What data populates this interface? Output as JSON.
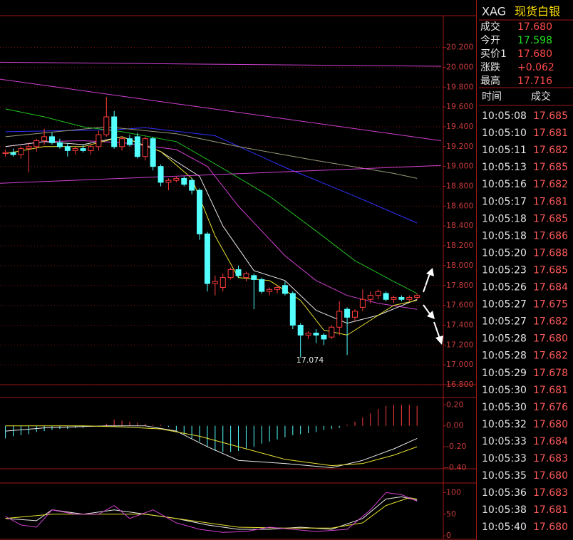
{
  "chart_data": [
    {
      "type": "candlestick",
      "x": [
        0,
        1,
        2,
        3,
        4,
        5,
        6,
        7,
        8,
        9,
        10,
        11,
        12,
        13,
        14,
        15,
        16,
        17,
        18,
        19,
        20,
        21,
        22,
        23,
        24,
        25,
        26,
        27,
        28,
        29,
        30,
        31,
        32,
        33,
        34,
        35,
        36,
        37,
        38,
        39,
        40,
        41,
        42,
        43,
        44,
        45,
        46,
        47,
        48,
        49,
        50,
        51,
        52,
        53
      ],
      "open": [
        19.13,
        19.14,
        19.12,
        19.18,
        19.2,
        19.26,
        19.3,
        19.24,
        19.2,
        19.16,
        19.18,
        19.16,
        19.2,
        19.32,
        19.5,
        19.2,
        19.28,
        19.3,
        19.1,
        19.28,
        19.0,
        18.84,
        18.86,
        18.88,
        18.86,
        18.76,
        18.32,
        17.82,
        17.78,
        17.88,
        17.96,
        17.88,
        17.9,
        17.86,
        17.74,
        17.76,
        17.8,
        17.72,
        17.4,
        17.3,
        17.32,
        17.3,
        17.28,
        17.38,
        17.56,
        17.48,
        17.58,
        17.66,
        17.7,
        17.72,
        17.66,
        17.68,
        17.66,
        17.68
      ],
      "high": [
        19.17,
        19.18,
        19.2,
        19.24,
        19.28,
        19.38,
        19.34,
        19.28,
        19.24,
        19.2,
        19.22,
        19.22,
        19.36,
        19.7,
        19.56,
        19.3,
        19.32,
        19.34,
        19.3,
        19.3,
        19.02,
        18.88,
        18.9,
        18.9,
        18.88,
        18.78,
        18.34,
        17.9,
        17.92,
        17.98,
        18.0,
        17.94,
        17.92,
        17.88,
        17.78,
        17.8,
        17.84,
        17.74,
        17.42,
        17.34,
        17.36,
        17.32,
        17.4,
        17.64,
        17.58,
        17.56,
        17.76,
        17.74,
        17.76,
        17.74,
        17.7,
        17.7,
        17.7,
        17.72
      ],
      "low": [
        19.1,
        19.1,
        19.08,
        18.94,
        19.15,
        19.22,
        19.22,
        19.18,
        19.1,
        19.12,
        19.14,
        19.12,
        19.16,
        19.3,
        19.18,
        19.16,
        19.2,
        19.08,
        19.06,
        18.96,
        18.8,
        18.76,
        18.84,
        18.8,
        18.72,
        18.26,
        17.74,
        17.7,
        17.74,
        17.86,
        17.88,
        17.84,
        17.56,
        17.72,
        17.7,
        17.72,
        17.7,
        17.36,
        17.074,
        17.26,
        17.22,
        17.2,
        17.26,
        17.3,
        17.1,
        17.44,
        17.54,
        17.62,
        17.66,
        17.64,
        17.62,
        17.64,
        17.64,
        17.66
      ],
      "close": [
        19.14,
        19.12,
        19.18,
        19.2,
        19.26,
        19.3,
        19.24,
        19.2,
        19.16,
        19.18,
        19.16,
        19.2,
        19.32,
        19.5,
        19.2,
        19.28,
        19.22,
        19.1,
        19.28,
        19.0,
        18.84,
        18.86,
        18.88,
        18.82,
        18.76,
        18.32,
        17.82,
        17.84,
        17.88,
        17.96,
        17.9,
        17.92,
        17.86,
        17.74,
        17.76,
        17.78,
        17.72,
        17.4,
        17.3,
        17.32,
        17.3,
        17.26,
        17.38,
        17.54,
        17.48,
        17.54,
        17.66,
        17.7,
        17.74,
        17.66,
        17.68,
        17.66,
        17.68,
        17.7
      ],
      "up_color": "#ff3c3c",
      "down_color": "#54ffff",
      "xlim": [
        -0.7,
        59.5
      ],
      "ylim": [
        16.8,
        20.52
      ],
      "yticks": [
        {
          "value": 16.8,
          "label": "16.800"
        },
        {
          "value": 17.0,
          "label": "17.000"
        },
        {
          "value": 17.2,
          "label": "17.200"
        },
        {
          "value": 17.4,
          "label": "17.400"
        },
        {
          "value": 17.6,
          "label": "17.600"
        },
        {
          "value": 17.8,
          "label": "17.800"
        },
        {
          "value": 18.0,
          "label": "18.000"
        },
        {
          "value": 18.2,
          "label": "18.200"
        },
        {
          "value": 18.4,
          "label": "18.400"
        },
        {
          "value": 18.6,
          "label": "18.600"
        },
        {
          "value": 18.8,
          "label": "18.800"
        },
        {
          "value": 19.0,
          "label": "19.000"
        },
        {
          "value": 19.2,
          "label": "19.200"
        },
        {
          "value": 19.4,
          "label": "19.400"
        },
        {
          "value": 19.6,
          "label": "19.600"
        },
        {
          "value": 19.8,
          "label": "19.800"
        },
        {
          "value": 20.0,
          "label": "20.000"
        },
        {
          "value": 20.2,
          "label": "20.200"
        }
      ],
      "grid": true,
      "annotations": [
        {
          "label": "17.074",
          "x": 38,
          "value": 17.074
        }
      ],
      "lines": [
        {
          "color": "#3030ff",
          "x": [
            0,
            14,
            18,
            27,
            36,
            45,
            53
          ],
          "values": [
            19.35,
            19.37,
            19.39,
            19.31,
            18.99,
            18.7,
            18.43
          ]
        },
        {
          "color": "#9a9a78",
          "x": [
            0,
            13,
            22,
            30,
            40,
            50,
            53
          ],
          "values": [
            19.3,
            19.4,
            19.33,
            19.2,
            19.06,
            18.93,
            18.88
          ]
        },
        {
          "color": "#22c022",
          "x": [
            0,
            5,
            10,
            15,
            22,
            28,
            34,
            40,
            45,
            50,
            53
          ],
          "values": [
            19.58,
            19.5,
            19.4,
            19.35,
            19.25,
            18.98,
            18.7,
            18.35,
            18.05,
            17.84,
            17.72
          ]
        },
        {
          "color": "#d040d0",
          "x": [
            0,
            5,
            10,
            15,
            22,
            26,
            30,
            36,
            40,
            44,
            48,
            53
          ],
          "values": [
            19.2,
            19.25,
            19.26,
            19.24,
            19.17,
            19.0,
            18.6,
            18.1,
            17.85,
            17.7,
            17.62,
            17.56
          ]
        },
        {
          "color": "#e8e8e8",
          "x": [
            0,
            5,
            10,
            15,
            20,
            25,
            28,
            32,
            36,
            40,
            44,
            48,
            53
          ],
          "values": [
            19.2,
            19.25,
            19.22,
            19.3,
            19.15,
            18.9,
            18.4,
            17.95,
            17.85,
            17.55,
            17.42,
            17.5,
            17.66
          ]
        },
        {
          "color": "#e8e030",
          "x": [
            0,
            5,
            10,
            15,
            20,
            24,
            27,
            30,
            34,
            38,
            41,
            44,
            46,
            50,
            53
          ],
          "values": [
            19.13,
            19.2,
            19.2,
            19.3,
            19.15,
            18.88,
            18.3,
            17.88,
            17.85,
            17.65,
            17.35,
            17.3,
            17.4,
            17.6,
            17.65
          ]
        },
        {
          "color": "#d040d0",
          "x": [
            -0.7,
            56.1
          ],
          "values": [
            19.88,
            19.26
          ]
        },
        {
          "color": "#d040d0",
          "x": [
            -0.7,
            56.1
          ],
          "values": [
            18.83,
            19.01
          ]
        },
        {
          "color": "#d040d0",
          "x": [
            -0.7,
            56.1
          ],
          "values": [
            20.05,
            20.01
          ]
        }
      ]
    },
    {
      "type": "macd",
      "x": [
        0,
        1,
        2,
        3,
        4,
        5,
        6,
        7,
        8,
        9,
        10,
        11,
        12,
        13,
        14,
        15,
        16,
        17,
        18,
        19,
        20,
        21,
        22,
        23,
        24,
        25,
        26,
        27,
        28,
        29,
        30,
        31,
        32,
        33,
        34,
        35,
        36,
        37,
        38,
        39,
        40,
        41,
        42,
        43,
        44,
        45,
        46,
        47,
        48,
        49,
        50,
        51,
        52,
        53
      ],
      "values": [
        -0.12,
        -0.1,
        -0.09,
        -0.08,
        -0.06,
        -0.05,
        -0.04,
        -0.03,
        -0.03,
        -0.02,
        -0.02,
        -0.01,
        -0.01,
        0.02,
        0.06,
        0.05,
        0.04,
        0.03,
        0.02,
        0.01,
        0.01,
        -0.01,
        -0.05,
        -0.08,
        -0.12,
        -0.15,
        -0.2,
        -0.24,
        -0.25,
        -0.25,
        -0.24,
        -0.22,
        -0.2,
        -0.17,
        -0.15,
        -0.13,
        -0.11,
        -0.09,
        -0.08,
        -0.07,
        -0.06,
        -0.04,
        -0.03,
        -0.02,
        0.01,
        0.04,
        0.08,
        0.12,
        0.16,
        0.19,
        0.2,
        0.2,
        0.2,
        0.19
      ],
      "up_color": "#ff3c3c",
      "down_color": "#54ffff",
      "xlim": [
        -0.7,
        59.5
      ],
      "ylim": [
        -0.41,
        0.27
      ],
      "yticks": [
        {
          "value": -0.4,
          "label": "-0.40"
        },
        {
          "value": -0.2,
          "label": "-0.20"
        },
        {
          "value": 0,
          "label": "0.00"
        },
        {
          "value": 0.2,
          "label": "0.20"
        }
      ],
      "lines": [
        {
          "color": "#e8e8e8",
          "x": [
            0,
            5,
            13,
            18,
            22,
            26,
            30,
            36,
            42,
            46,
            50,
            53
          ],
          "values": [
            -0.05,
            -0.02,
            0.0,
            0.0,
            -0.05,
            -0.2,
            -0.33,
            -0.36,
            -0.4,
            -0.33,
            -0.22,
            -0.12
          ]
        },
        {
          "color": "#e8e030",
          "x": [
            0,
            10,
            15,
            20,
            25,
            30,
            36,
            42,
            46,
            50,
            53
          ],
          "values": [
            0.0,
            0.0,
            -0.01,
            -0.03,
            -0.1,
            -0.2,
            -0.32,
            -0.38,
            -0.36,
            -0.28,
            -0.2
          ]
        }
      ]
    },
    {
      "type": "kdj",
      "xlim": [
        -0.7,
        59.5
      ],
      "ylim": [
        -8,
        122
      ],
      "yticks": [
        0,
        50,
        100
      ],
      "lines": [
        {
          "color": "#e8e8e8",
          "x": [
            0,
            4,
            6,
            10,
            14,
            18,
            22,
            26,
            30,
            34,
            38,
            42,
            46,
            49,
            51,
            53
          ],
          "values": [
            40,
            35,
            60,
            50,
            60,
            50,
            40,
            25,
            15,
            15,
            20,
            15,
            40,
            85,
            90,
            82
          ]
        },
        {
          "color": "#e8e030",
          "x": [
            0,
            6,
            12,
            18,
            24,
            30,
            36,
            42,
            46,
            49,
            52,
            53
          ],
          "values": [
            40,
            50,
            50,
            50,
            35,
            20,
            18,
            18,
            30,
            70,
            88,
            85
          ]
        },
        {
          "color": "#d040d0",
          "x": [
            0,
            2,
            4,
            6,
            9,
            12,
            14,
            16,
            19,
            22,
            25,
            28,
            31,
            34,
            37,
            40,
            44,
            47,
            49,
            51,
            53
          ],
          "values": [
            45,
            25,
            20,
            60,
            50,
            50,
            70,
            40,
            60,
            30,
            15,
            8,
            10,
            20,
            15,
            10,
            15,
            60,
            100,
            95,
            80
          ]
        }
      ]
    }
  ],
  "quote": {
    "symbol": "XAG",
    "name": "现货白银",
    "rows": [
      {
        "label": "成交",
        "value": "17.680"
      },
      {
        "label": "今开",
        "value": "17.598"
      },
      {
        "label": "买价1",
        "value": "17.680"
      },
      {
        "label": "涨跌",
        "value": "+0.062"
      },
      {
        "label": "最高",
        "value": "17.716"
      }
    ]
  },
  "trades": {
    "header": [
      "时间",
      "成交"
    ],
    "rows": [
      [
        "10:05:08",
        "17.685"
      ],
      [
        "10:05:10",
        "17.681"
      ],
      [
        "10:05:11",
        "17.682"
      ],
      [
        "10:05:13",
        "17.685"
      ],
      [
        "10:05:16",
        "17.682"
      ],
      [
        "10:05:17",
        "17.681"
      ],
      [
        "10:05:18",
        "17.685"
      ],
      [
        "10:05:18",
        "17.686"
      ],
      [
        "10:05:20",
        "17.688"
      ],
      [
        "10:05:23",
        "17.685"
      ],
      [
        "10:05:26",
        "17.684"
      ],
      [
        "10:05:27",
        "17.675"
      ],
      [
        "10:05:27",
        "17.682"
      ],
      [
        "10:05:28",
        "17.680"
      ],
      [
        "10:05:28",
        "17.682"
      ],
      [
        "10:05:29",
        "17.678"
      ],
      [
        "10:05:30",
        "17.681"
      ],
      [
        "10:05:30",
        "17.676"
      ],
      [
        "10:05:32",
        "17.680"
      ],
      [
        "10:05:33",
        "17.684"
      ],
      [
        "10:05:33",
        "17.683"
      ],
      [
        "10:05:35",
        "17.680"
      ],
      [
        "10:05:36",
        "17.683"
      ],
      [
        "10:05:38",
        "17.681"
      ],
      [
        "10:05:40",
        "17.680"
      ]
    ]
  }
}
